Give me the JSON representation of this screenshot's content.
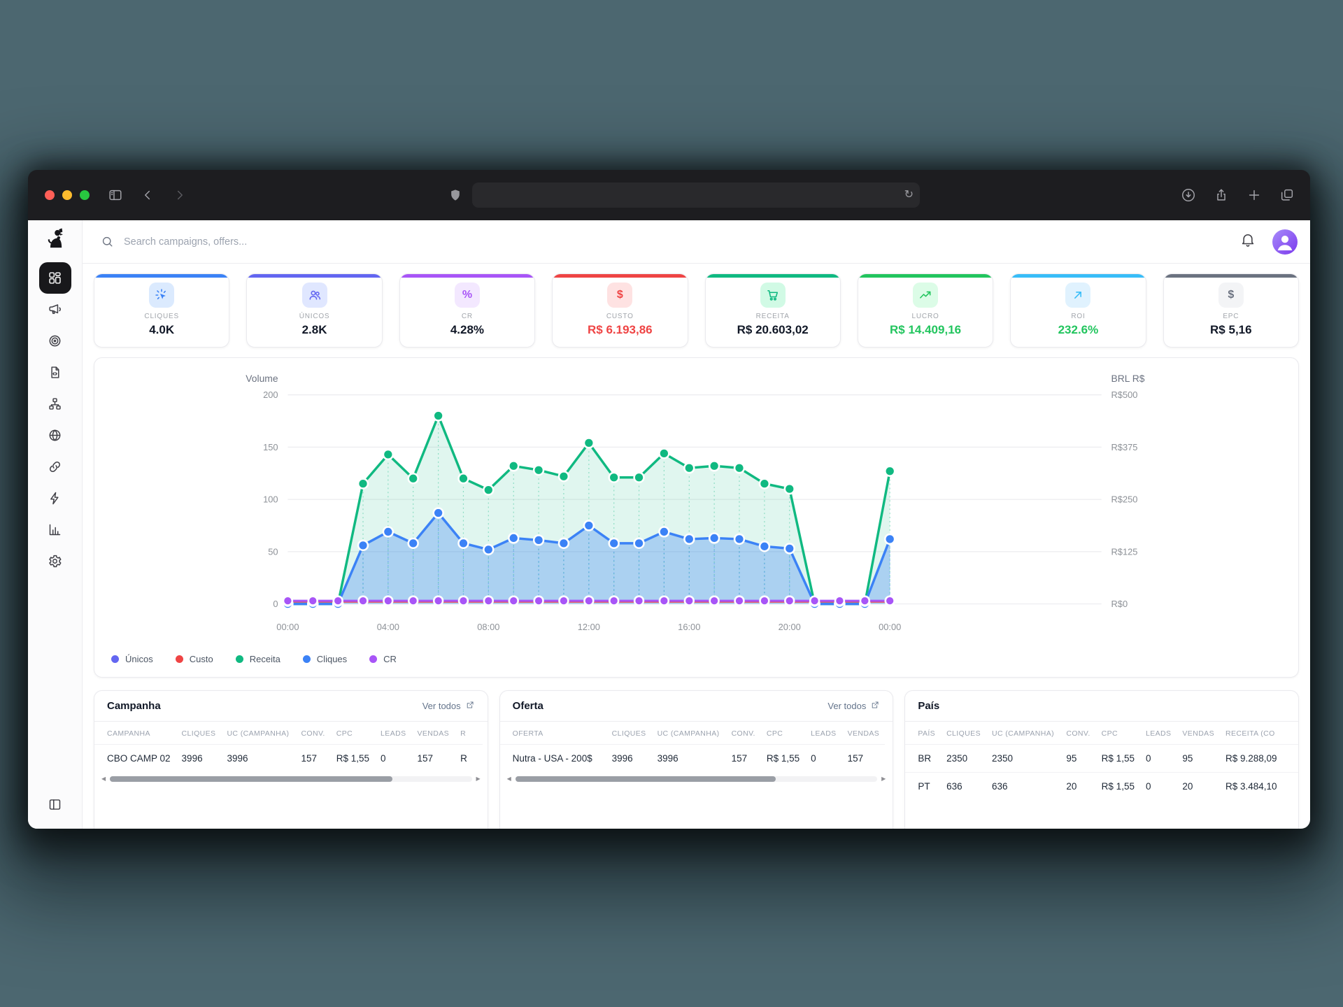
{
  "browser": {
    "address_value": ""
  },
  "topbar": {
    "search_placeholder": "Search campaigns, offers..."
  },
  "sidebar": {
    "items": [
      "dashboard",
      "campaigns",
      "targets",
      "offer-pages",
      "flows",
      "domains",
      "links",
      "automations",
      "reports",
      "settings"
    ],
    "active": "dashboard"
  },
  "kpis": [
    {
      "label": "CLIQUES",
      "value": "4.0K",
      "accent": "#3b82f6",
      "chip_bg": "#dbeafe",
      "icon": "click",
      "value_color": "#111827"
    },
    {
      "label": "ÚNICOS",
      "value": "2.8K",
      "accent": "#6366f1",
      "chip_bg": "#e0e7ff",
      "icon": "users",
      "value_color": "#111827"
    },
    {
      "label": "CR",
      "value": "4.28%",
      "accent": "#a855f7",
      "chip_bg": "#f3e8ff",
      "icon": "percent",
      "value_color": "#111827"
    },
    {
      "label": "CUSTO",
      "value": "R$ 6.193,86",
      "accent": "#ef4444",
      "chip_bg": "#fee2e2",
      "icon": "dollar",
      "value_color": "#ef4444"
    },
    {
      "label": "RECEITA",
      "value": "R$ 20.603,02",
      "accent": "#10b981",
      "chip_bg": "#d1fae5",
      "icon": "cart",
      "value_color": "#111827"
    },
    {
      "label": "LUCRO",
      "value": "R$ 14.409,16",
      "accent": "#22c55e",
      "chip_bg": "#dcfce7",
      "icon": "trend-up",
      "value_color": "#22c55e"
    },
    {
      "label": "ROI",
      "value": "232.6%",
      "accent": "#38bdf8",
      "chip_bg": "#e0f2fe",
      "icon": "arrow-up-right",
      "value_color": "#22c55e"
    },
    {
      "label": "EPC",
      "value": "R$ 5,16",
      "accent": "#6b7280",
      "chip_bg": "#f3f4f6",
      "icon": "dollar",
      "value_color": "#111827"
    }
  ],
  "chart_data": {
    "type": "line",
    "hours": 25,
    "x_extent_hours": 32.5,
    "x_tick_positions": [
      0,
      4,
      8,
      12,
      16,
      20,
      24
    ],
    "x_tick_labels": [
      "00:00",
      "04:00",
      "08:00",
      "12:00",
      "16:00",
      "20:00",
      "00:00"
    ],
    "left_axis": {
      "title": "Volume",
      "max": 200,
      "ticks": [
        0,
        50,
        100,
        150,
        200
      ]
    },
    "right_axis": {
      "title": "BRL R$",
      "tick_labels": [
        "R$0",
        "R$125",
        "R$250",
        "R$375",
        "R$500"
      ]
    },
    "series": [
      {
        "name": "Únicos",
        "color": "#6366f1",
        "width": 2.5,
        "dot_r": 5,
        "values": [
          0,
          0,
          0,
          56,
          69,
          58,
          87,
          58,
          52,
          63,
          61,
          58,
          75,
          58,
          58,
          69,
          62,
          63,
          62,
          55,
          53,
          0,
          0,
          0,
          62
        ]
      },
      {
        "name": "Custo",
        "color": "#ef4444",
        "width": 2.4,
        "dot_r": 6,
        "values": [
          2,
          2,
          2,
          2,
          2,
          2,
          2,
          2,
          2,
          2,
          2,
          2,
          2,
          2,
          2,
          2,
          2,
          2,
          2,
          2,
          2,
          2,
          2,
          2,
          2
        ]
      },
      {
        "name": "Receita",
        "color": "#10b981",
        "fill": "rgba(16,185,129,0.13)",
        "width": 3.5,
        "dot_r": 7,
        "values": [
          0,
          0,
          0,
          115,
          143,
          120,
          180,
          120,
          109,
          132,
          128,
          122,
          154,
          121,
          121,
          144,
          130,
          132,
          130,
          115,
          110,
          0,
          0,
          0,
          127
        ]
      },
      {
        "name": "Cliques",
        "color": "#3b82f6",
        "fill": "rgba(59,130,246,0.32)",
        "width": 3.5,
        "dot_r": 7,
        "values": [
          0,
          0,
          0,
          56,
          69,
          58,
          87,
          58,
          52,
          63,
          61,
          58,
          75,
          58,
          58,
          69,
          62,
          63,
          62,
          55,
          53,
          0,
          0,
          0,
          62
        ]
      },
      {
        "name": "CR",
        "color": "#a855f7",
        "width": 3,
        "dot_r": 6.5,
        "values": [
          3,
          3,
          3,
          3,
          3,
          3,
          3,
          3,
          3,
          3,
          3,
          3,
          3,
          3,
          3,
          3,
          3,
          3,
          3,
          3,
          3,
          3,
          3,
          3,
          3
        ]
      }
    ],
    "legend": [
      {
        "label": "Únicos",
        "color": "#6366f1"
      },
      {
        "label": "Custo",
        "color": "#ef4444"
      },
      {
        "label": "Receita",
        "color": "#10b981"
      },
      {
        "label": "Cliques",
        "color": "#3b82f6"
      },
      {
        "label": "CR",
        "color": "#a855f7"
      }
    ]
  },
  "tables": [
    {
      "id": "campanha",
      "title": "Campanha",
      "link": "Ver todos",
      "columns": [
        "CAMPANHA",
        "CLIQUES",
        "UC (CAMPANHA)",
        "CONV.",
        "CPC",
        "LEADS",
        "VENDAS",
        "R"
      ],
      "rows": [
        [
          "CBO CAMP 02",
          "3996",
          "3996",
          "157",
          "R$ 1,55",
          "0",
          "157",
          "R"
        ]
      ],
      "thumb": 0.78
    },
    {
      "id": "oferta",
      "title": "Oferta",
      "link": "Ver todos",
      "columns": [
        "OFERTA",
        "CLIQUES",
        "UC (CAMPANHA)",
        "CONV.",
        "CPC",
        "LEADS",
        "VENDAS"
      ],
      "rows": [
        [
          "Nutra - USA - 200$",
          "3996",
          "3996",
          "157",
          "R$ 1,55",
          "0",
          "157"
        ]
      ],
      "thumb": 0.72
    },
    {
      "id": "pais",
      "title": "País",
      "link": null,
      "columns": [
        "PAÍS",
        "CLIQUES",
        "UC (CAMPANHA)",
        "CONV.",
        "CPC",
        "LEADS",
        "VENDAS",
        "RECEITA (CO"
      ],
      "rows": [
        [
          "BR",
          "2350",
          "2350",
          "95",
          "R$ 1,55",
          "0",
          "95",
          "R$ 9.288,09"
        ],
        [
          "PT",
          "636",
          "636",
          "20",
          "R$ 1,55",
          "0",
          "20",
          "R$ 3.484,10"
        ]
      ],
      "thumb": null
    }
  ]
}
